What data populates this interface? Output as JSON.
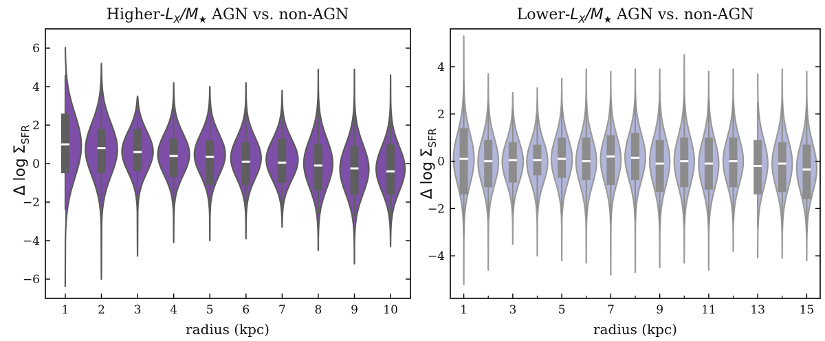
{
  "chart_data": [
    {
      "type": "violin",
      "title": "Higher-L_X/M★ AGN vs. non-AGN",
      "title_parts": {
        "pre": "Higher-",
        "L": "L",
        "Lsub": "X",
        "slash": "/",
        "M": "M",
        "Msub": "★",
        "post": " AGN vs. non-AGN"
      },
      "xlabel": "radius (kpc)",
      "ylabel": "Δ log Σ_SFR",
      "ylabel_parts": {
        "delta": "Δ",
        "log": "log",
        "sigma": "Σ",
        "sub": "SFR"
      },
      "ylim": [
        -7,
        7
      ],
      "yticks": [
        -6,
        -4,
        -2,
        0,
        2,
        4,
        6
      ],
      "xtick_labels": [
        "1",
        "2",
        "3",
        "4",
        "5",
        "6",
        "7",
        "8",
        "9",
        "10"
      ],
      "colors": {
        "fill": "#7d4fa8",
        "edge": "#5a5a5a",
        "box": "#5e5e5e",
        "median": "#ffffff"
      },
      "violins": [
        {
          "radius": 1,
          "min": -6.4,
          "max": 6.2,
          "q1": -0.5,
          "median": 1.0,
          "q3": 2.6,
          "wlo": -2.4,
          "whi": 4.6,
          "peak": 1.0,
          "sigma": 1.7,
          "maxw": 0.45
        },
        {
          "radius": 2,
          "min": -6.0,
          "max": 5.2,
          "q1": -0.5,
          "median": 0.8,
          "q3": 1.8,
          "wlo": -2.0,
          "whi": 3.7,
          "peak": 0.8,
          "sigma": 1.4,
          "maxw": 0.45
        },
        {
          "radius": 3,
          "min": -4.8,
          "max": 3.5,
          "q1": -0.4,
          "median": 0.6,
          "q3": 1.8,
          "wlo": -1.6,
          "whi": 3.0,
          "peak": 0.7,
          "sigma": 1.1,
          "maxw": 0.45
        },
        {
          "radius": 4,
          "min": -4.1,
          "max": 4.2,
          "q1": -0.7,
          "median": 0.4,
          "q3": 1.3,
          "wlo": -2.0,
          "whi": 3.0,
          "peak": 0.5,
          "sigma": 1.1,
          "maxw": 0.44
        },
        {
          "radius": 5,
          "min": -4.0,
          "max": 4.0,
          "q1": -1.1,
          "median": 0.35,
          "q3": 1.2,
          "wlo": -2.2,
          "whi": 3.0,
          "peak": 0.5,
          "sigma": 1.1,
          "maxw": 0.43
        },
        {
          "radius": 6,
          "min": -3.9,
          "max": 4.2,
          "q1": -1.1,
          "median": 0.1,
          "q3": 1.1,
          "wlo": -2.3,
          "whi": 3.0,
          "peak": 0.3,
          "sigma": 1.1,
          "maxw": 0.42
        },
        {
          "radius": 7,
          "min": -3.3,
          "max": 3.8,
          "q1": -1.0,
          "median": 0.05,
          "q3": 1.3,
          "wlo": -2.4,
          "whi": 3.0,
          "peak": 0.2,
          "sigma": 1.1,
          "maxw": 0.44
        },
        {
          "radius": 8,
          "min": -4.5,
          "max": 4.9,
          "q1": -1.4,
          "median": -0.1,
          "q3": 1.0,
          "wlo": -2.6,
          "whi": 3.0,
          "peak": 0.0,
          "sigma": 1.3,
          "maxw": 0.4
        },
        {
          "radius": 9,
          "min": -5.2,
          "max": 4.9,
          "q1": -1.6,
          "median": -0.25,
          "q3": 0.9,
          "wlo": -2.7,
          "whi": 3.0,
          "peak": -0.3,
          "sigma": 1.3,
          "maxw": 0.4
        },
        {
          "radius": 10,
          "min": -4.3,
          "max": 4.6,
          "q1": -1.6,
          "median": -0.4,
          "q3": 1.0,
          "wlo": -2.8,
          "whi": 3.0,
          "peak": -0.3,
          "sigma": 1.2,
          "maxw": 0.4
        }
      ]
    },
    {
      "type": "violin",
      "title": "Lower-L_X/M★ AGN vs. non-AGN",
      "title_parts": {
        "pre": "Lower-",
        "L": "L",
        "Lsub": "X",
        "slash": "/",
        "M": "M",
        "Msub": "★",
        "post": " AGN vs. non-AGN"
      },
      "xlabel": "radius (kpc)",
      "ylabel": "Δ log Σ_SFR",
      "ylabel_parts": {
        "delta": "Δ",
        "log": "log",
        "sigma": "Σ",
        "sub": "SFR"
      },
      "ylim": [
        -5.8,
        5.6
      ],
      "yticks": [
        -4,
        -2,
        0,
        2,
        4
      ],
      "xtick_labels": [
        "1",
        "3",
        "5",
        "7",
        "9",
        "11",
        "13",
        "15"
      ],
      "xtick_positions": [
        1,
        3,
        5,
        7,
        9,
        11,
        13,
        15
      ],
      "colors": {
        "fill": "#b3b6db",
        "edge": "#9a9a9a",
        "box": "#8c8c8c",
        "median": "#ffffff"
      },
      "violins": [
        {
          "radius": 1,
          "min": -5.2,
          "max": 5.3,
          "q1": -1.4,
          "median": 0.1,
          "q3": 1.4,
          "wlo": -3.2,
          "whi": 3.4,
          "peak": 0.1,
          "sigma": 1.1,
          "maxw": 0.42
        },
        {
          "radius": 2,
          "min": -4.6,
          "max": 3.7,
          "q1": -1.1,
          "median": 0.0,
          "q3": 0.9,
          "wlo": -2.4,
          "whi": 2.4,
          "peak": 0.0,
          "sigma": 1.0,
          "maxw": 0.42
        },
        {
          "radius": 3,
          "min": -3.5,
          "max": 2.9,
          "q1": -0.9,
          "median": 0.05,
          "q3": 0.8,
          "wlo": -2.2,
          "whi": 2.2,
          "peak": 0.0,
          "sigma": 0.9,
          "maxw": 0.43
        },
        {
          "radius": 4,
          "min": -4.0,
          "max": 3.1,
          "q1": -0.6,
          "median": 0.05,
          "q3": 0.7,
          "wlo": -2.0,
          "whi": 2.0,
          "peak": 0.0,
          "sigma": 0.9,
          "maxw": 0.43
        },
        {
          "radius": 5,
          "min": -4.2,
          "max": 3.5,
          "q1": -0.7,
          "median": 0.1,
          "q3": 1.0,
          "wlo": -2.2,
          "whi": 2.3,
          "peak": 0.1,
          "sigma": 0.95,
          "maxw": 0.43
        },
        {
          "radius": 6,
          "min": -4.3,
          "max": 3.9,
          "q1": -0.8,
          "median": 0.0,
          "q3": 1.0,
          "wlo": -2.4,
          "whi": 2.5,
          "peak": 0.0,
          "sigma": 1.0,
          "maxw": 0.42
        },
        {
          "radius": 7,
          "min": -4.8,
          "max": 3.8,
          "q1": -1.0,
          "median": 0.2,
          "q3": 1.1,
          "wlo": -2.6,
          "whi": 2.6,
          "peak": 0.1,
          "sigma": 1.0,
          "maxw": 0.42
        },
        {
          "radius": 8,
          "min": -4.7,
          "max": 3.9,
          "q1": -0.8,
          "median": 0.15,
          "q3": 1.2,
          "wlo": -2.5,
          "whi": 2.7,
          "peak": 0.2,
          "sigma": 1.0,
          "maxw": 0.42
        },
        {
          "radius": 9,
          "min": -4.5,
          "max": 3.9,
          "q1": -1.3,
          "median": -0.1,
          "q3": 0.9,
          "wlo": -2.8,
          "whi": 2.5,
          "peak": 0.0,
          "sigma": 1.05,
          "maxw": 0.41
        },
        {
          "radius": 10,
          "min": -4.3,
          "max": 4.5,
          "q1": -1.1,
          "median": 0.0,
          "q3": 1.0,
          "wlo": -2.6,
          "whi": 2.7,
          "peak": 0.0,
          "sigma": 1.05,
          "maxw": 0.41
        },
        {
          "radius": 11,
          "min": -4.6,
          "max": 3.8,
          "q1": -1.2,
          "median": -0.1,
          "q3": 1.0,
          "wlo": -2.7,
          "whi": 2.6,
          "peak": -0.1,
          "sigma": 1.05,
          "maxw": 0.41
        },
        {
          "radius": 12,
          "min": -3.8,
          "max": 3.9,
          "q1": -1.1,
          "median": 0.0,
          "q3": 1.0,
          "wlo": -2.5,
          "whi": 2.5,
          "peak": 0.0,
          "sigma": 1.0,
          "maxw": 0.41
        },
        {
          "radius": 13,
          "min": -4.1,
          "max": 3.8,
          "q1": -1.4,
          "median": -0.2,
          "q3": 0.9,
          "wlo": -2.8,
          "whi": 2.5,
          "peak": -0.1,
          "sigma": 1.05,
          "maxw": 0.41
        },
        {
          "radius": 14,
          "min": -4.1,
          "max": 3.9,
          "q1": -1.3,
          "median": -0.1,
          "q3": 0.8,
          "wlo": -2.8,
          "whi": 2.4,
          "peak": -0.1,
          "sigma": 1.05,
          "maxw": 0.41
        },
        {
          "radius": 15,
          "min": -4.2,
          "max": 3.8,
          "q1": -1.6,
          "median": -0.35,
          "q3": 0.7,
          "wlo": -3.0,
          "whi": 2.3,
          "peak": -0.3,
          "sigma": 1.05,
          "maxw": 0.41
        }
      ]
    }
  ]
}
